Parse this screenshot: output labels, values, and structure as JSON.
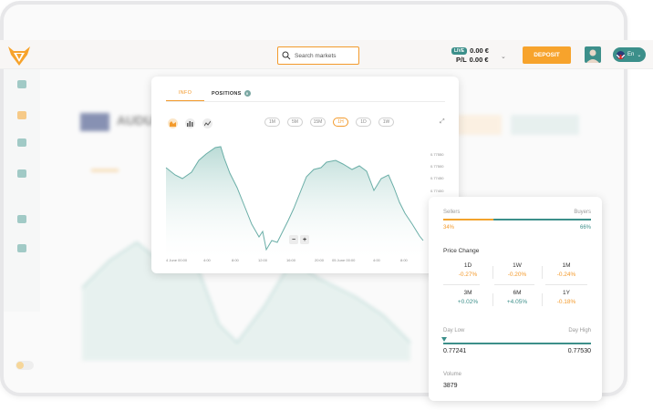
{
  "header": {
    "search_placeholder": "Search markets",
    "live_badge": "LIVE",
    "balance": "0.00 €",
    "pl_label": "P/L",
    "pl_value": "0.00 €",
    "deposit_label": "DEPOSIT",
    "language": "En",
    "accent_color": "#f7a32c",
    "teal_color": "#3c8f8a"
  },
  "chart_popup": {
    "tabs": [
      {
        "label": "INFO",
        "active": true
      },
      {
        "label": "POSITIONS",
        "badge": "0"
      }
    ],
    "chart_types": [
      "area-chart-icon",
      "bar-chart-icon",
      "line-chart-icon"
    ],
    "timeframes": [
      "1M",
      "5M",
      "15M",
      "1H",
      "1D",
      "1W"
    ],
    "active_timeframe": "1H",
    "y_ticks": [
      "0.77550",
      "0.77500",
      "0.77450",
      "0.77400"
    ],
    "x_ticks": [
      "4 June 00:00",
      "4:00",
      "8:00",
      "12:00",
      "16:00",
      "20:00",
      "05 June 00:00",
      "4:00",
      "8:00"
    ],
    "zoom_out": "−",
    "zoom_in": "+"
  },
  "chart_data": {
    "type": "area",
    "x": [
      "4 June 00:00",
      "4:00",
      "8:00",
      "12:00",
      "16:00",
      "20:00",
      "05 June 00:00",
      "4:00",
      "8:00"
    ],
    "y_ticks": [
      "0.77550",
      "0.77500",
      "0.77450",
      "0.77400"
    ],
    "series": [
      {
        "values": [
          0.7748,
          0.7751,
          0.7754,
          0.7741,
          0.7744,
          0.7753,
          0.7751,
          0.7747,
          0.7738
        ]
      }
    ],
    "grid": false,
    "color": "#3c8f8a"
  },
  "market_info": {
    "sellers_label": "Sellers",
    "buyers_label": "Buyers",
    "sellers_pct": "34%",
    "buyers_pct": "66%",
    "sellers_share": 0.34,
    "price_change_title": "Price Change",
    "price_changes": [
      {
        "period": "1D",
        "value": "-0.27%"
      },
      {
        "period": "1W",
        "value": "-0.20%"
      },
      {
        "period": "1M",
        "value": "-0.24%"
      },
      {
        "period": "3M",
        "value": "+0.02%"
      },
      {
        "period": "6M",
        "value": "+4.05%"
      },
      {
        "period": "1Y",
        "value": "-0.18%"
      }
    ],
    "day_low_label": "Day Low",
    "day_high_label": "Day High",
    "day_low": "0.77241",
    "day_high": "0.77530",
    "volume_label": "Volume",
    "volume": "3879"
  }
}
